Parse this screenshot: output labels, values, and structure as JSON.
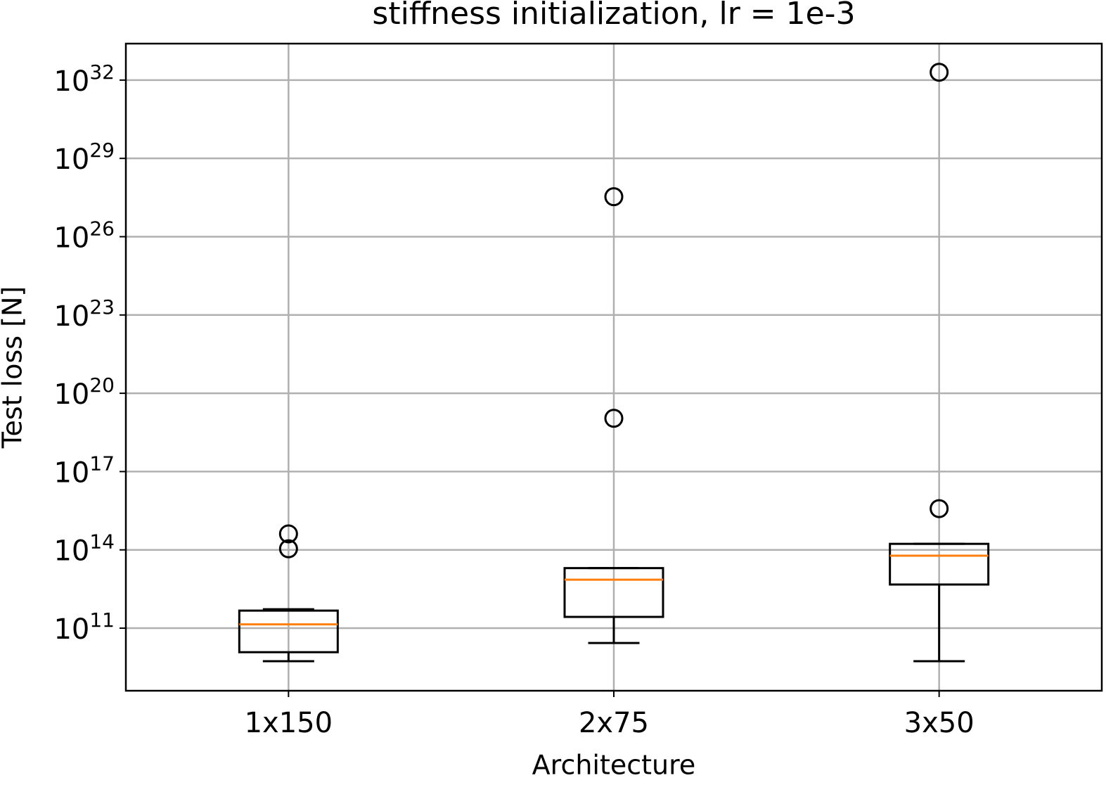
{
  "chart_data": {
    "type": "box",
    "title": "stiffness initialization, lr = 1e-3",
    "xlabel": "Architecture",
    "ylabel": "Test loss [N]",
    "categories": [
      "1x150",
      "2x75",
      "3x50"
    ],
    "boxes": [
      {
        "whislo": 5400000000.0,
        "q1": 12000000000.0,
        "med": 140000000000.0,
        "q3": 470000000000.0,
        "whishi": 530000000000.0,
        "fliers": [
          110000000000000.0,
          410000000000000.0
        ]
      },
      {
        "whislo": 27000000000.0,
        "q1": 270000000000.0,
        "med": 7200000000000.0,
        "q3": 20000000000000.0,
        "whishi": 20000000000000.0,
        "fliers": [
          1.1e+19,
          3.4e+27
        ]
      },
      {
        "whislo": 5400000000.0,
        "q1": 4700000000000.0,
        "med": 60000000000000.0,
        "q3": 170000000000000.0,
        "whishi": 170000000000000.0,
        "fliers": [
          3800000000000000.0,
          2e+32
        ]
      }
    ],
    "box_color": "#000000",
    "median_color": "#ff7f0e",
    "yscale": "log",
    "ylim": [
      400000000.0,
      2.5e+33
    ],
    "yticks": [
      {
        "value": 100000000000.0,
        "label": "10^11"
      },
      {
        "value": 100000000000000.0,
        "label": "10^14"
      },
      {
        "value": 1e+17,
        "label": "10^17"
      },
      {
        "value": 1e+20,
        "label": "10^20"
      },
      {
        "value": 1e+23,
        "label": "10^23"
      },
      {
        "value": 1e+26,
        "label": "10^26"
      },
      {
        "value": 1e+29,
        "label": "10^29"
      },
      {
        "value": 1e+32,
        "label": "10^32"
      }
    ],
    "grid": true
  }
}
